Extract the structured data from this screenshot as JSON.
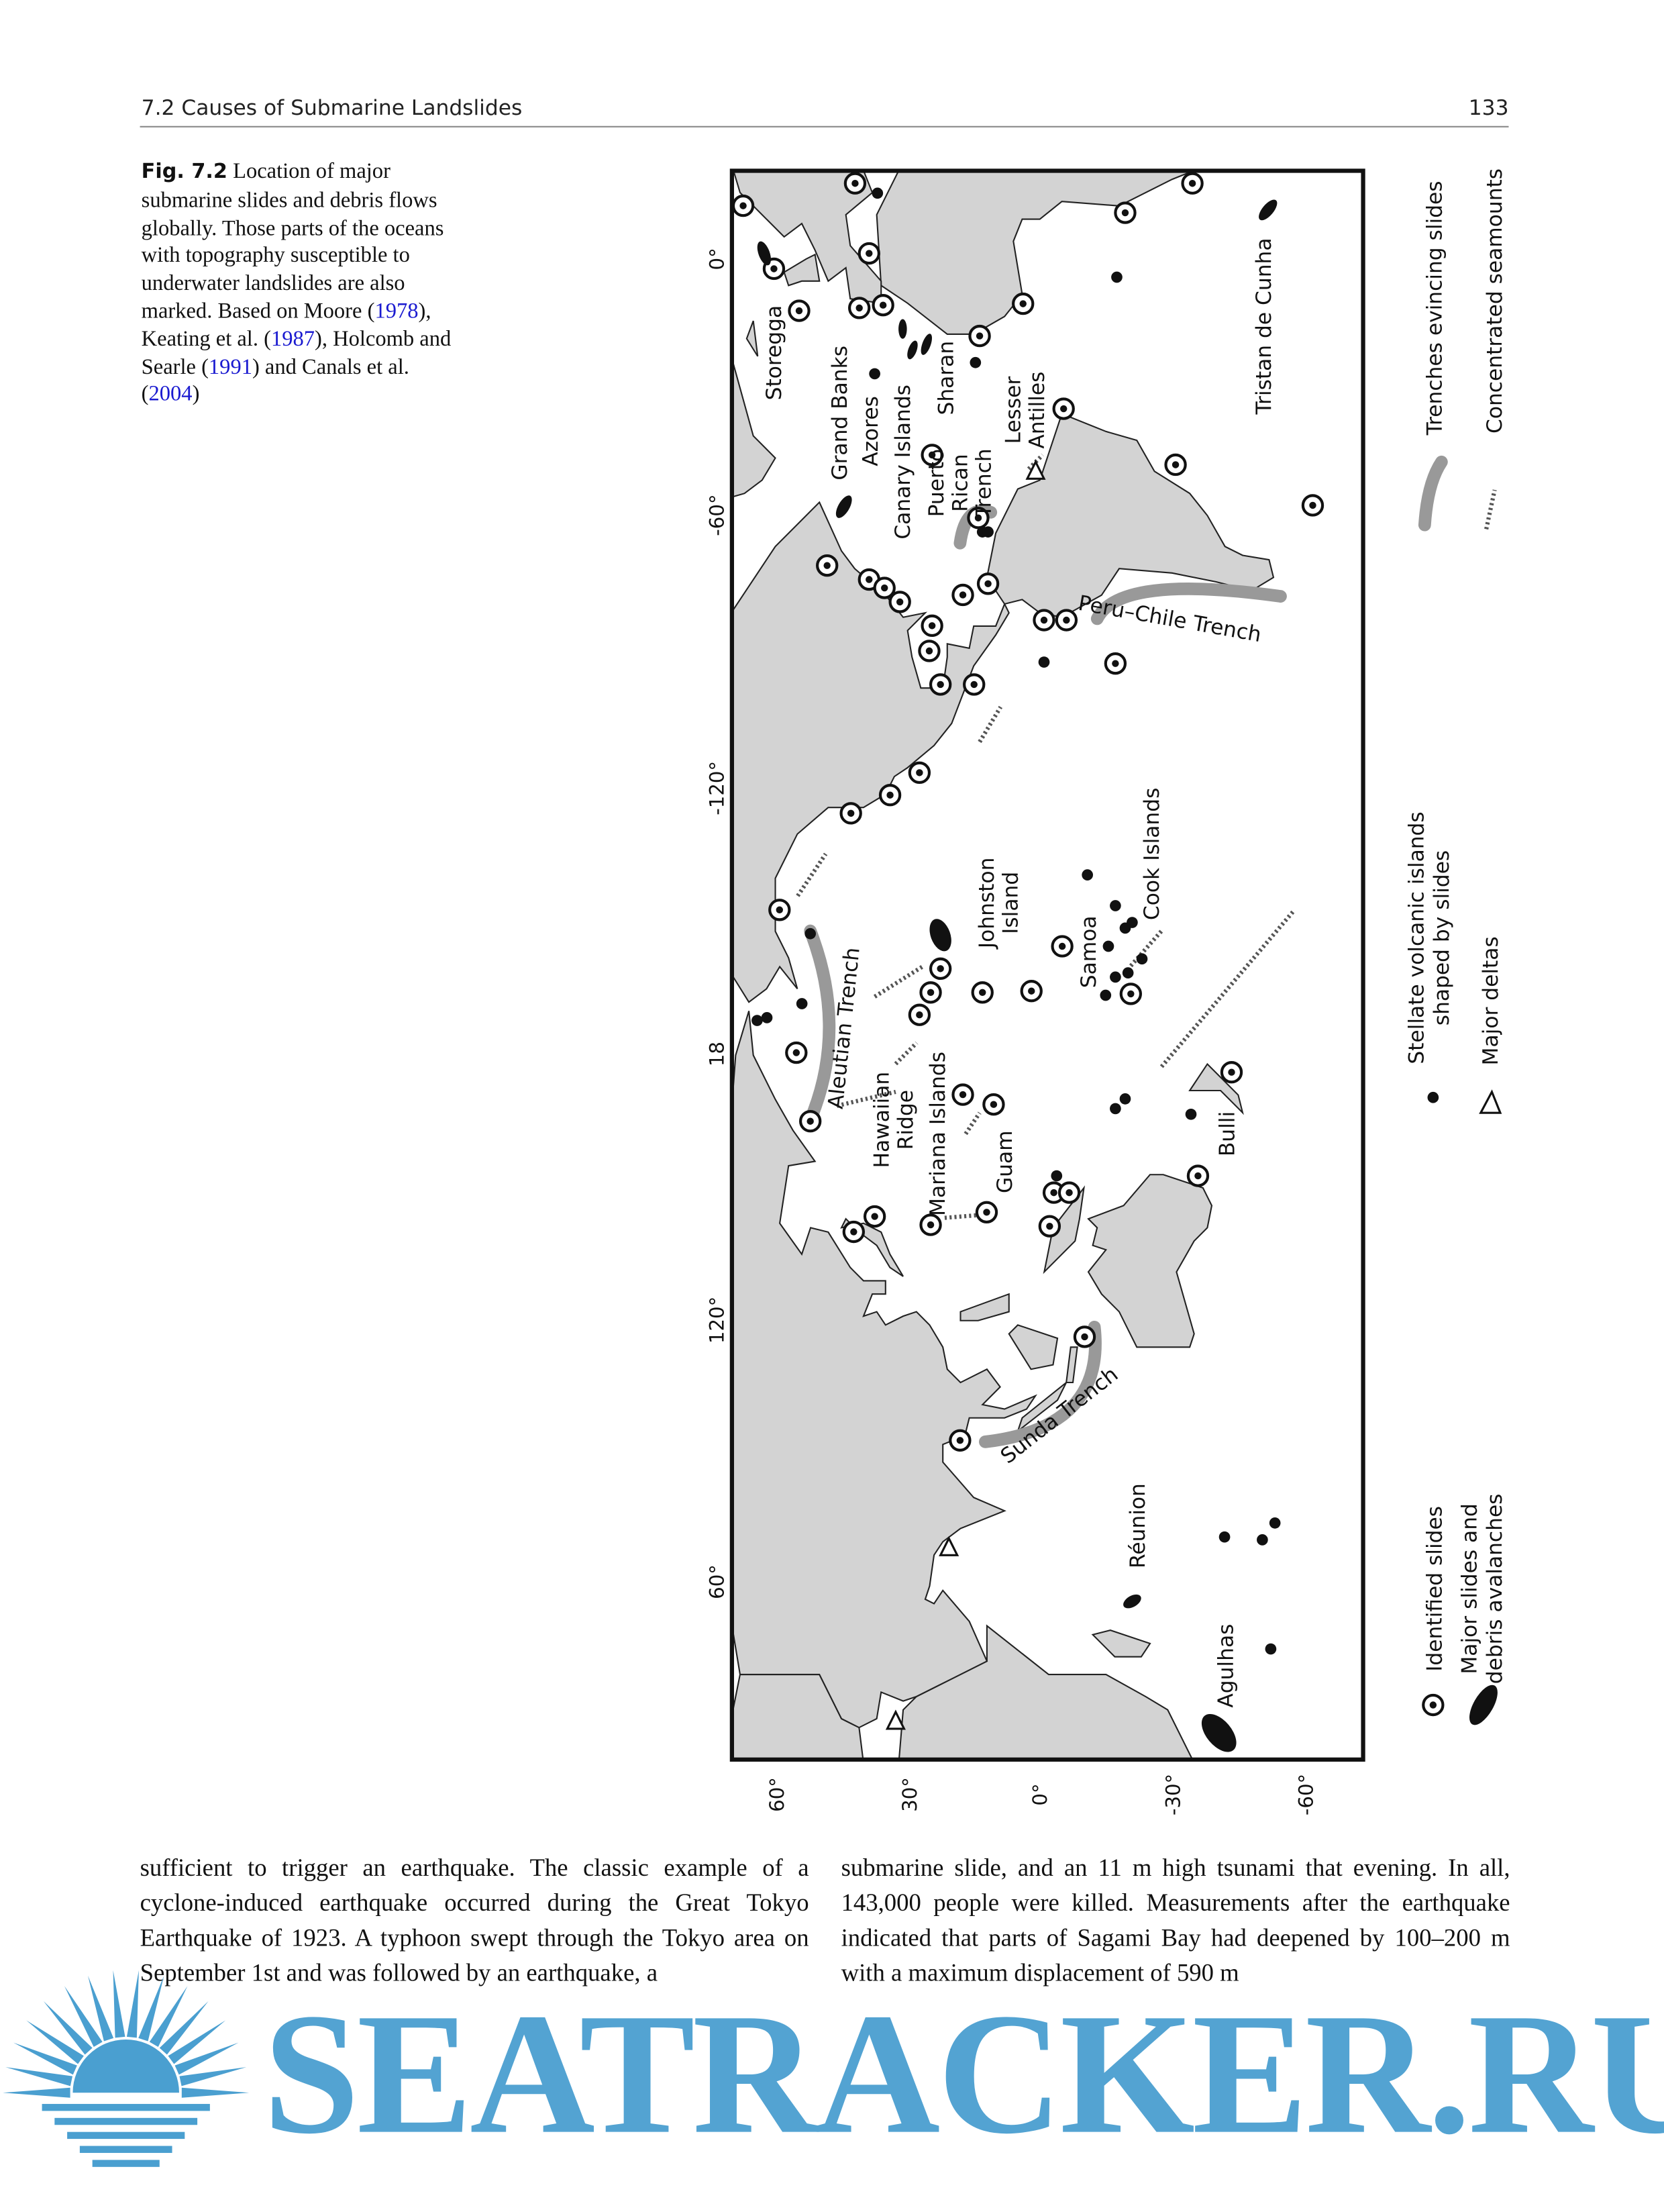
{
  "header": {
    "section": "7.2   Causes of Submarine Landslides",
    "page_number": "133"
  },
  "caption": {
    "fig_label": "Fig. 7.2",
    "text_before": " Location of major submarine slides and debris flows globally. Those parts of the oceans with topography susceptible to underwater landslides are also marked. Based on Moore (",
    "ref1": "1978",
    "t2": "), Keating et al. (",
    "ref2": "1987",
    "t3": "), Holcomb and Searle (",
    "ref3": "1991",
    "t4": ") and Canals et al. (",
    "ref4": "2004",
    "t5": ")",
    "ref_color": "#1a1ad0"
  },
  "map": {
    "land_color": "#d3d3d3",
    "trench_color": "#999999",
    "longitude_ticks": [
      "0°",
      "-60°",
      "-120°",
      "18",
      "120°",
      "60°"
    ],
    "latitude_ticks": [
      "60°",
      "30°",
      "0°",
      "-30°",
      "-60°"
    ],
    "labels": {
      "storegga": "Storegga",
      "grand_banks": "Grand Banks",
      "azores": "Azores",
      "canary": "Canary Islands",
      "sharan": "Sharan",
      "puerto_rican_1": "Puerto",
      "puerto_rican_2": "Rican",
      "puerto_rican_3": "Trench",
      "lesser_antilles_1": "Lesser",
      "lesser_antilles_2": "Antilles",
      "peru_chile": "Peru–Chile Trench",
      "tristan": "Tristan de Cunha",
      "aleutian": "Aleutian Trench",
      "hawaiian_1": "Hawaiian",
      "hawaiian_2": "Ridge",
      "mariana": "Mariana Islands",
      "guam": "Guam",
      "johnston_1": "Johnston",
      "johnston_2": "Island",
      "samoa": "Samoa",
      "cook": "Cook Islands",
      "bulli": "Bulli",
      "sunda": "Sunda Trench",
      "reunion": "Réunion",
      "agulhas": "Agulhas"
    },
    "legend": {
      "identified": "Identified slides",
      "major_1": "Major slides and",
      "major_2": "debris avalanches",
      "stellate_1": "Stellate volcanic islands",
      "stellate_2": "shaped by slides",
      "deltas": "Major deltas",
      "trenches": "Trenches evincing slides",
      "seamounts": "Concentrated seamounts"
    }
  },
  "body": {
    "left": "sufficient to trigger an earthquake. The classic example of a cyclone-induced earthquake occurred during the Great Tokyo Earthquake of 1923. A typhoon swept through the Tokyo area on September 1st and was followed by an earthquake, a",
    "right": "submarine slide, and an 11 m high tsunami that evening. In all, 143,000 people were killed. Measurements after the earthquake indicated that parts of Sagami Bay had deepened by 100–200 m with a maximum displacement of 590 m"
  },
  "watermark": {
    "text": "SEATRACKER.RU",
    "color": "#4a9fd0"
  }
}
